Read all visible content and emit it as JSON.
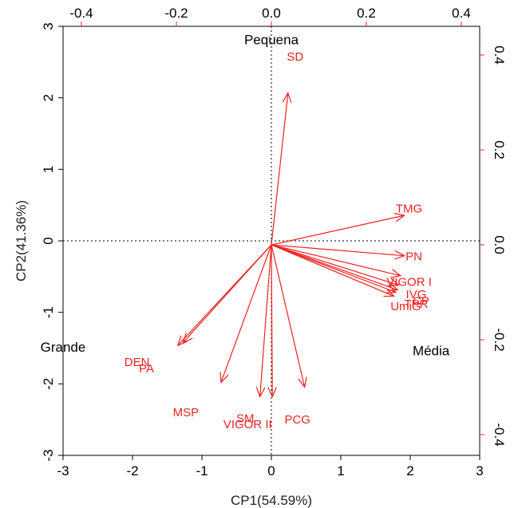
{
  "chart_data": {
    "type": "biplot",
    "xlabel": "CP1(54.59%)",
    "ylabel": "CP2(41.36%)",
    "bottom_axis": {
      "range": [
        -3,
        3
      ],
      "ticks": [
        "-3",
        "-2",
        "-1",
        "0",
        "1",
        "2",
        "3"
      ],
      "tick_values": [
        -3,
        -2,
        -1,
        0,
        1,
        2,
        3
      ]
    },
    "left_axis": {
      "range": [
        -3,
        3
      ],
      "ticks": [
        "-3",
        "-2",
        "-1",
        "0",
        "1",
        "2",
        "3"
      ],
      "tick_values": [
        -3,
        -2,
        -1,
        0,
        1,
        2,
        3
      ]
    },
    "top_axis": {
      "range": [
        -0.4,
        0.4
      ],
      "ticks": [
        "-0.4",
        "-0.2",
        "0.0",
        "0.2",
        "0.4"
      ],
      "tick_values": [
        -0.4,
        -0.2,
        0.0,
        0.2,
        0.4
      ]
    },
    "right_axis": {
      "range": [
        -0.4,
        0.4
      ],
      "ticks": [
        "-0.4",
        "-0.2",
        "0.0",
        "0.2",
        "0.4"
      ],
      "tick_values": [
        -0.4,
        -0.2,
        0.0,
        0.2,
        0.4
      ]
    },
    "reference_lines": {
      "x": 0,
      "y": 0,
      "style": "dotted"
    },
    "observations": [
      {
        "label": "Pequena",
        "x": 0.0,
        "y": 2.8
      },
      {
        "label": "Grande",
        "x": -3.0,
        "y": -1.5
      },
      {
        "label": "Média",
        "x": 2.3,
        "y": -1.55
      }
    ],
    "vectors": [
      {
        "label": "SD",
        "x": 0.035,
        "y": 0.32,
        "label_x": 0.05,
        "label_y": 0.395
      },
      {
        "label": "TMG",
        "x": 0.28,
        "y": 0.062,
        "label_x": 0.29,
        "label_y": 0.075
      },
      {
        "label": "PN",
        "x": 0.28,
        "y": -0.023,
        "label_x": 0.3,
        "label_y": -0.026
      },
      {
        "label": "VIGOR I",
        "x": 0.272,
        "y": -0.065,
        "label_x": 0.29,
        "label_y": -0.08
      },
      {
        "label": "IVG",
        "x": 0.268,
        "y": -0.085,
        "label_x": 0.305,
        "label_y": -0.106
      },
      {
        "label": "CP",
        "x": 0.266,
        "y": -0.095,
        "label_x": 0.315,
        "label_y": -0.12
      },
      {
        "label": "TPR",
        "x": 0.262,
        "y": -0.1,
        "label_x": 0.305,
        "label_y": -0.126
      },
      {
        "label": "UmiG",
        "x": 0.258,
        "y": -0.108,
        "label_x": 0.283,
        "label_y": -0.131
      },
      {
        "label": "DEN",
        "x": -0.197,
        "y": -0.212,
        "label_x": -0.283,
        "label_y": -0.249
      },
      {
        "label": "PA",
        "x": -0.186,
        "y": -0.206,
        "label_x": -0.263,
        "label_y": -0.262
      },
      {
        "label": "MSP",
        "x": -0.106,
        "y": -0.29,
        "label_x": -0.18,
        "label_y": -0.355
      },
      {
        "label": "SM",
        "x": -0.024,
        "y": -0.32,
        "label_x": -0.055,
        "label_y": -0.367
      },
      {
        "label": "VIGOR II",
        "x": 0.002,
        "y": -0.32,
        "label_x": -0.05,
        "label_y": -0.38
      },
      {
        "label": "PCG",
        "x": 0.07,
        "y": -0.3,
        "label_x": 0.055,
        "label_y": -0.37
      }
    ]
  }
}
